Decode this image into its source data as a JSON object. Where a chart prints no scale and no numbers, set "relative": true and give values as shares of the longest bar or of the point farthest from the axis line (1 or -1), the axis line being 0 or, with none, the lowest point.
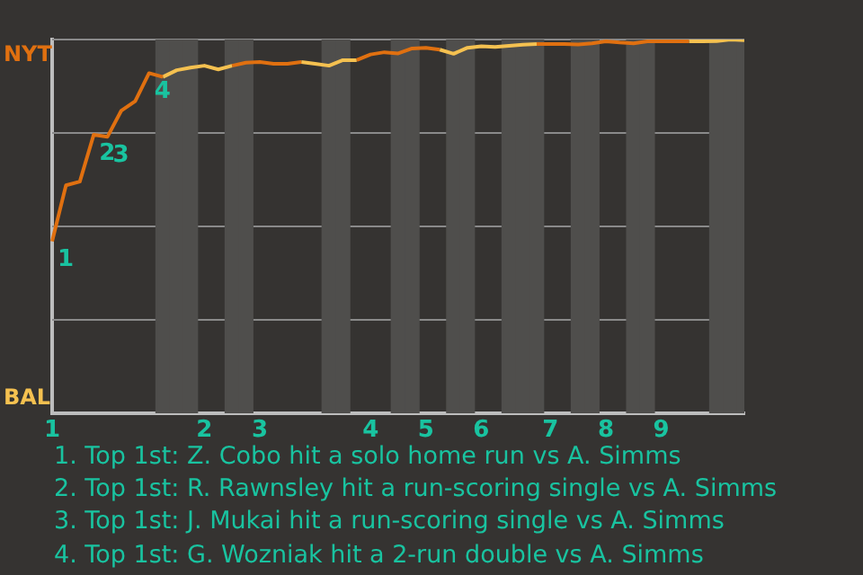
{
  "chart_data": {
    "type": "line",
    "relative": true,
    "categories": [
      "1",
      null,
      null,
      null,
      null,
      null,
      null,
      null,
      null,
      null,
      null,
      "2",
      null,
      null,
      null,
      "3",
      null,
      null,
      null,
      null,
      null,
      null,
      null,
      "4",
      null,
      null,
      null,
      "5",
      null,
      null,
      null,
      "6",
      null,
      null,
      null,
      null,
      "7",
      null,
      null,
      null,
      "8",
      null,
      null,
      null,
      "9",
      null,
      null,
      null,
      null,
      null,
      null
    ],
    "series": [
      {
        "type": "bar",
        "color": "#4f4e4c",
        "values": [
          null,
          null,
          null,
          null,
          null,
          null,
          null,
          null,
          1,
          1,
          1,
          null,
          null,
          1,
          1,
          null,
          null,
          null,
          null,
          null,
          1,
          1,
          null,
          null,
          null,
          1,
          1,
          null,
          null,
          1,
          1,
          null,
          null,
          1,
          1,
          1,
          null,
          null,
          1,
          1,
          null,
          null,
          1,
          1,
          null,
          null,
          null,
          null,
          1,
          1,
          1
        ]
      },
      {
        "color": "#e07010",
        "values": [
          0.46,
          0.61,
          0.62,
          0.745,
          0.74,
          0.81,
          0.835,
          0.91,
          0.9,
          null,
          null,
          null,
          null,
          0.93,
          0.938,
          0.94,
          0.935,
          0.935,
          0.94,
          null,
          null,
          null,
          0.945,
          0.96,
          0.966,
          0.963,
          0.976,
          0.978,
          0.973,
          null,
          null,
          null,
          null,
          null,
          null,
          0.988,
          0.988,
          0.988,
          0.987,
          0.99,
          0.995,
          0.992,
          0.99,
          0.995,
          0.995,
          0.995,
          0.995,
          null,
          null,
          null,
          null
        ]
      },
      {
        "color": "#f5c150",
        "values": [
          null,
          null,
          null,
          null,
          null,
          null,
          null,
          null,
          0.9,
          0.918,
          0.925,
          0.93,
          0.92,
          0.93,
          null,
          null,
          null,
          null,
          0.94,
          0.935,
          0.93,
          0.945,
          0.945,
          null,
          null,
          null,
          null,
          null,
          0.973,
          0.962,
          0.978,
          0.982,
          0.98,
          0.983,
          0.986,
          0.988,
          null,
          null,
          null,
          null,
          null,
          null,
          null,
          null,
          null,
          null,
          0.995,
          0.995,
          0.996,
          1.0,
          0.998
        ]
      }
    ],
    "ref_lines": [
      {
        "axis": "y",
        "value": 0.25,
        "color": "#8a8a8a"
      },
      {
        "axis": "y",
        "value": 0.5,
        "color": "#8a8a8a"
      },
      {
        "axis": "y",
        "value": 0.75,
        "color": "#8a8a8a"
      },
      {
        "axis": "y",
        "value": 1,
        "color": "#8a8a8a"
      }
    ],
    "legend": false,
    "annotations": [
      "NYT",
      "BAL",
      {
        "text": "1",
        "x": "1",
        "y": 0.46
      },
      {
        "text": "2",
        "y": 0.745
      },
      {
        "text": "3",
        "y": 0.74
      },
      {
        "text": "4",
        "y": 0.91
      },
      "1. Top 1st: Z. Cobo hit a solo home run vs A. Simms",
      "2. Top 1st: R. Rawnsley hit a run-scoring single vs A. Simms",
      "3. Top 1st: J. Mukai hit a run-scoring single vs A. Simms",
      "4. Top 1st: G. Wozniak hit a 2-run double vs A. Simms"
    ]
  }
}
